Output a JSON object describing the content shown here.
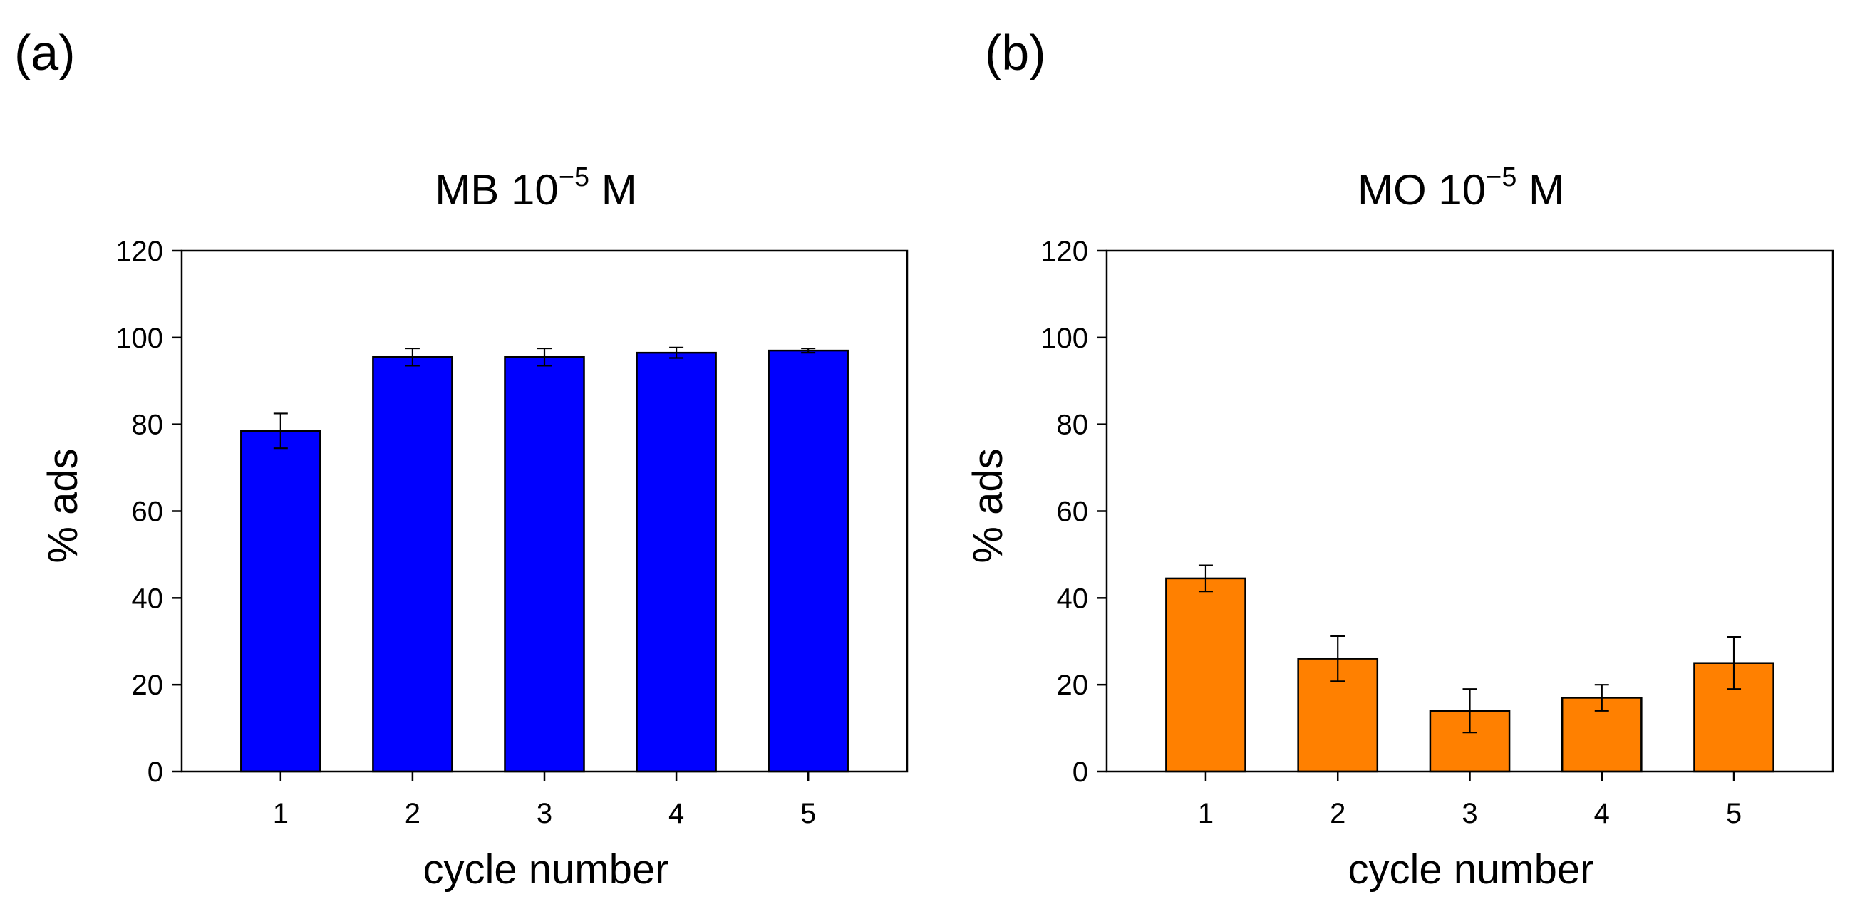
{
  "chart_data": [
    {
      "type": "bar",
      "panel_label": "(a)",
      "title": "MB 10",
      "title_exponent": "−5",
      "title_unit": "M",
      "xlabel": "cycle number",
      "ylabel": "% ads",
      "categories": [
        "1",
        "2",
        "3",
        "4",
        "5"
      ],
      "values": [
        78.5,
        95.5,
        95.5,
        96.5,
        97.0
      ],
      "errors": [
        4.0,
        2.0,
        2.0,
        1.2,
        0.5
      ],
      "ylim": [
        0,
        120
      ],
      "yticks": [
        "0",
        "20",
        "40",
        "60",
        "80",
        "100",
        "120"
      ],
      "bar_color": "#0000ff",
      "grid": false
    },
    {
      "type": "bar",
      "panel_label": "(b)",
      "title": "MO 10",
      "title_exponent": "−5",
      "title_unit": "M",
      "xlabel": "cycle number",
      "ylabel": "% ads",
      "categories": [
        "1",
        "2",
        "3",
        "4",
        "5"
      ],
      "values": [
        44.5,
        26.0,
        14.0,
        17.0,
        25.0
      ],
      "errors": [
        3.0,
        5.2,
        5.0,
        3.0,
        6.0
      ],
      "ylim": [
        0,
        120
      ],
      "yticks": [
        "0",
        "20",
        "40",
        "60",
        "80",
        "100",
        "120"
      ],
      "bar_color": "#ff8000",
      "grid": false
    }
  ]
}
